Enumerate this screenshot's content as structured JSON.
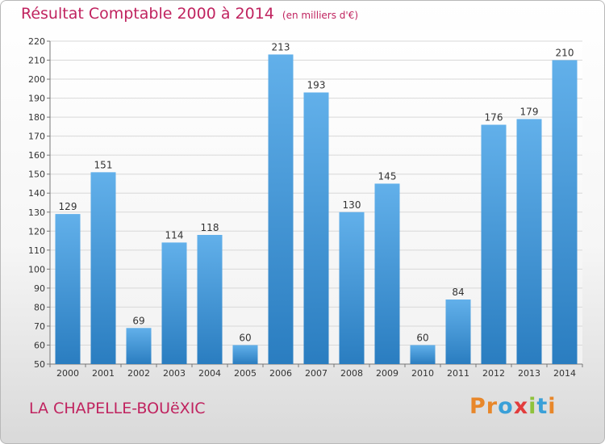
{
  "header": {
    "title": "Résultat Comptable 2000 à 2014",
    "unit": "(en milliers d'€)"
  },
  "footer": {
    "commune": "LA CHAPELLE-BOUëXIC",
    "brand": "Proxiti",
    "brand_colors": [
      "#e8872a",
      "#e8872a",
      "#3aa0d8",
      "#e23c3c",
      "#8fc23c",
      "#3aa0d8",
      "#e8872a"
    ]
  },
  "colors": {
    "title": "#c0235f",
    "bar_top": "#62b0ea",
    "bar_bottom": "#2a7dc0",
    "grid": "#d8d8d8",
    "axis_text": "#333333"
  },
  "chart_data": {
    "type": "bar",
    "title": "Résultat Comptable 2000 à 2014",
    "categories": [
      "2000",
      "2001",
      "2002",
      "2003",
      "2004",
      "2005",
      "2006",
      "2007",
      "2008",
      "2009",
      "2010",
      "2011",
      "2012",
      "2013",
      "2014"
    ],
    "values": [
      129,
      151,
      69,
      114,
      118,
      60,
      213,
      193,
      130,
      145,
      60,
      84,
      176,
      179,
      210
    ],
    "ylim": [
      50,
      220
    ],
    "ytick_step": 10,
    "grid": true,
    "data_labels": true
  }
}
